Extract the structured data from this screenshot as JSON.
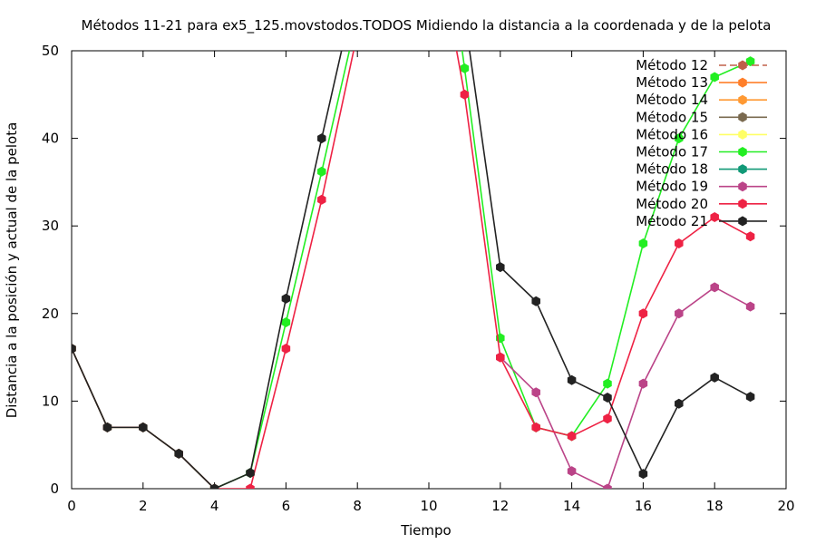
{
  "chart_data": {
    "type": "line",
    "title": "Métodos 11-21 para ex5_125.movstodos.TODOS Midiendo la distancia a la coordenada y de la pelota",
    "xlabel": "Tiempo",
    "ylabel": "Distancia a la posición y actual de la pelota",
    "xlim": [
      0,
      20
    ],
    "ylim": [
      0,
      50
    ],
    "xticks": [
      0,
      2,
      4,
      6,
      8,
      10,
      12,
      14,
      16,
      18,
      20
    ],
    "yticks": [
      0,
      10,
      20,
      30,
      40,
      50
    ],
    "grid": false,
    "legend_position": "top-right",
    "series": [
      {
        "name": "Método 12",
        "color": "#c0604a",
        "dashed": true,
        "points": []
      },
      {
        "name": "Método 13",
        "color": "#ff7f2a",
        "dashed": false,
        "points": []
      },
      {
        "name": "Método 14",
        "color": "#ff9933",
        "dashed": false,
        "points": []
      },
      {
        "name": "Método 15",
        "color": "#7a6a4f",
        "dashed": false,
        "points": []
      },
      {
        "name": "Método 16",
        "color": "#ffff66",
        "dashed": false,
        "points": []
      },
      {
        "name": "Método 17",
        "color": "#22ee22",
        "dashed": false,
        "points": [
          [
            0,
            16
          ],
          [
            1,
            7
          ],
          [
            2,
            7
          ],
          [
            3,
            4
          ],
          [
            4,
            0
          ],
          [
            5,
            1.8
          ],
          [
            6,
            19
          ],
          [
            7,
            36.2
          ],
          [
            8,
            54
          ],
          [
            10.8,
            54
          ],
          [
            11,
            48
          ],
          [
            12,
            17.2
          ],
          [
            13,
            7
          ],
          [
            14,
            6
          ],
          [
            15,
            12
          ],
          [
            16,
            28
          ],
          [
            17,
            40
          ],
          [
            18,
            47
          ],
          [
            19,
            48.8
          ]
        ]
      },
      {
        "name": "Método 18",
        "color": "#119977",
        "dashed": false,
        "points": []
      },
      {
        "name": "Método 19",
        "color": "#bb4488",
        "dashed": false,
        "points": [
          [
            12,
            15
          ],
          [
            13,
            11
          ],
          [
            14,
            2
          ],
          [
            15,
            0
          ],
          [
            16,
            12
          ],
          [
            17,
            20
          ],
          [
            18,
            23
          ],
          [
            19,
            20.8
          ]
        ]
      },
      {
        "name": "Método 20",
        "color": "#ee2244",
        "dashed": false,
        "points": [
          [
            0,
            16
          ],
          [
            1,
            7
          ],
          [
            2,
            7
          ],
          [
            3,
            4
          ],
          [
            4,
            0
          ],
          [
            5,
            0
          ],
          [
            6,
            16
          ],
          [
            7,
            33
          ],
          [
            8,
            52
          ],
          [
            10.6,
            54
          ],
          [
            11,
            45
          ],
          [
            12,
            15
          ],
          [
            13,
            7
          ],
          [
            14,
            6
          ],
          [
            15,
            8
          ],
          [
            16,
            20
          ],
          [
            17,
            28
          ],
          [
            18,
            31
          ],
          [
            19,
            28.8
          ]
        ]
      },
      {
        "name": "Método 21",
        "color": "#222222",
        "dashed": false,
        "points": [
          [
            0,
            16
          ],
          [
            1,
            7
          ],
          [
            2,
            7
          ],
          [
            3,
            4
          ],
          [
            4,
            0
          ],
          [
            5,
            1.8
          ],
          [
            6,
            21.7
          ],
          [
            7,
            40
          ],
          [
            8,
            58
          ],
          [
            10.8,
            58
          ],
          [
            11,
            54
          ],
          [
            12,
            25.3
          ],
          [
            13,
            21.4
          ],
          [
            14,
            12.4
          ],
          [
            15,
            10.4
          ],
          [
            16,
            1.7
          ],
          [
            17,
            9.7
          ],
          [
            18,
            12.7
          ],
          [
            19,
            10.5
          ]
        ]
      }
    ]
  }
}
